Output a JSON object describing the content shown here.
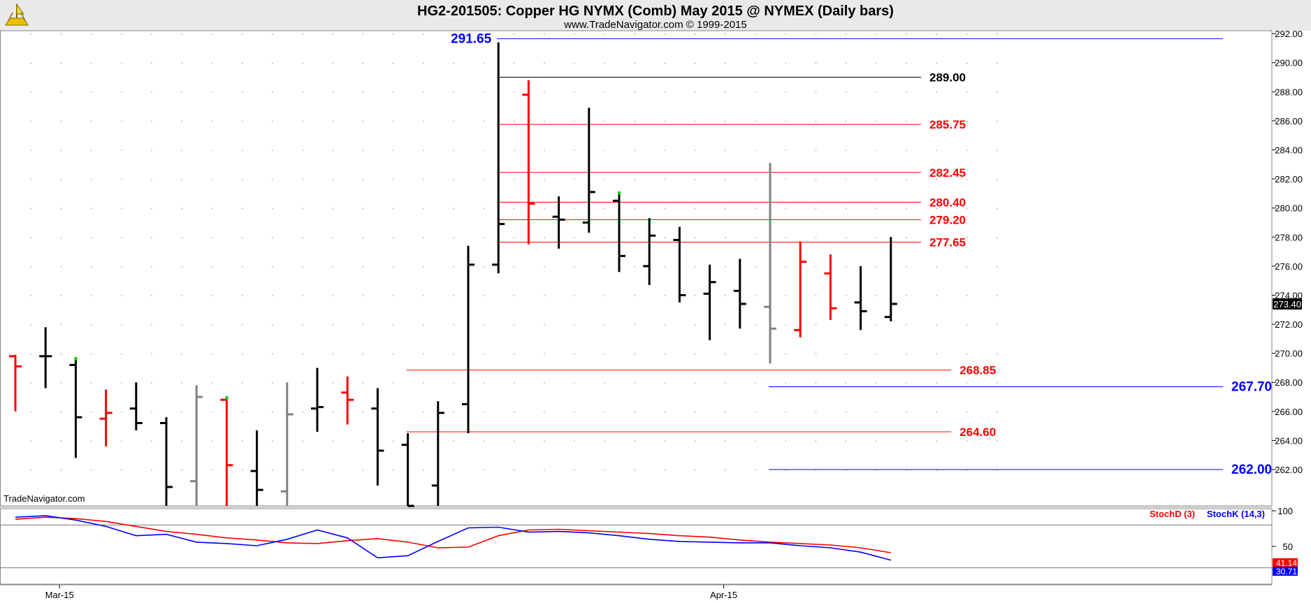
{
  "header": {
    "title": "HG2-201505:  Copper HG NYMX (Comb) May 2015 @ NYMEX  (Daily bars)",
    "subtitle": "www.TradeNavigator.com © 1999-2015",
    "watermark": "TradeNavigator.com",
    "logo_icon": "trade-navigator-logo-icon"
  },
  "colors": {
    "up_bar": "#000000",
    "down_bar": "#ff0000",
    "neutral_bar": "#808080",
    "level_red": "#ff0000",
    "level_blue": "#0000ff",
    "level_black": "#000000",
    "stoch_d": "#ff0000",
    "stoch_k": "#0000ff",
    "green_tick": "#00cc00"
  },
  "chart_data": [
    {
      "type": "ohlc",
      "name": "price",
      "ylim": [
        259.5,
        292.2
      ],
      "yticks": [
        "292.00",
        "290.00",
        "288.00",
        "286.00",
        "284.00",
        "282.00",
        "280.00",
        "278.00",
        "276.00",
        "274.00",
        "272.00",
        "270.00",
        "268.00",
        "266.00",
        "264.00",
        "262.00"
      ],
      "last_price_label": "273.40",
      "x_labels": [
        {
          "i": 1,
          "label": "Mar-15"
        },
        {
          "i": 23,
          "label": "Apr-15"
        }
      ],
      "bars": [
        {
          "i": 0,
          "o": 269.8,
          "h": 269.9,
          "l": 266.0,
          "c": 269.1,
          "color": "red"
        },
        {
          "i": 1,
          "o": 269.8,
          "h": 271.8,
          "l": 267.6,
          "c": 269.8,
          "color": "black"
        },
        {
          "i": 2,
          "o": 269.2,
          "h": 269.6,
          "l": 262.8,
          "c": 265.6,
          "color": "black",
          "green": true
        },
        {
          "i": 3,
          "o": 265.5,
          "h": 267.5,
          "l": 263.6,
          "c": 265.9,
          "color": "red"
        },
        {
          "i": 4,
          "o": 266.2,
          "h": 268.0,
          "l": 264.7,
          "c": 265.2,
          "color": "black"
        },
        {
          "i": 5,
          "o": 265.2,
          "h": 265.6,
          "l": 259.5,
          "c": 260.8,
          "color": "black"
        },
        {
          "i": 6,
          "o": 261.2,
          "h": 267.8,
          "l": 259.5,
          "c": 267.0,
          "color": "gray"
        },
        {
          "i": 7,
          "o": 266.8,
          "h": 266.9,
          "l": 259.5,
          "c": 262.3,
          "color": "red",
          "green": true
        },
        {
          "i": 8,
          "o": 261.9,
          "h": 264.7,
          "l": 259.5,
          "c": 260.6,
          "color": "black"
        },
        {
          "i": 9,
          "o": 260.5,
          "h": 268.0,
          "l": 259.5,
          "c": 265.8,
          "color": "gray"
        },
        {
          "i": 10,
          "o": 266.2,
          "h": 269.0,
          "l": 264.6,
          "c": 266.3,
          "color": "black"
        },
        {
          "i": 11,
          "o": 267.3,
          "h": 268.4,
          "l": 265.1,
          "c": 266.8,
          "color": "red"
        },
        {
          "i": 12,
          "o": 266.2,
          "h": 267.6,
          "l": 260.9,
          "c": 263.3,
          "color": "black"
        },
        {
          "i": 13,
          "o": 263.7,
          "h": 264.5,
          "l": 259.5,
          "c": 259.5,
          "color": "black"
        },
        {
          "i": 14,
          "o": 260.9,
          "h": 266.7,
          "l": 259.5,
          "c": 265.9,
          "color": "black"
        },
        {
          "i": 15,
          "o": 266.5,
          "h": 277.4,
          "l": 264.5,
          "c": 276.1,
          "color": "black"
        },
        {
          "i": 16,
          "o": 276.1,
          "h": 291.4,
          "l": 275.5,
          "c": 278.9,
          "color": "black"
        },
        {
          "i": 17,
          "o": 287.8,
          "h": 288.8,
          "l": 277.5,
          "c": 280.3,
          "color": "red"
        },
        {
          "i": 18,
          "o": 279.4,
          "h": 280.8,
          "l": 277.2,
          "c": 279.2,
          "color": "black"
        },
        {
          "i": 19,
          "o": 279.0,
          "h": 286.9,
          "l": 278.3,
          "c": 281.1,
          "color": "black"
        },
        {
          "i": 20,
          "o": 280.5,
          "h": 281.0,
          "l": 275.6,
          "c": 276.7,
          "color": "black",
          "green": true
        },
        {
          "i": 21,
          "o": 276.0,
          "h": 279.3,
          "l": 274.7,
          "c": 278.1,
          "color": "black"
        },
        {
          "i": 22,
          "o": 277.8,
          "h": 278.7,
          "l": 273.5,
          "c": 274.0,
          "color": "black"
        },
        {
          "i": 23,
          "o": 274.1,
          "h": 276.1,
          "l": 270.9,
          "c": 274.9,
          "color": "black"
        },
        {
          "i": 24,
          "o": 274.3,
          "h": 276.5,
          "l": 271.7,
          "c": 273.4,
          "color": "black"
        },
        {
          "i": 25,
          "o": 273.2,
          "h": 283.1,
          "l": 269.3,
          "c": 271.7,
          "color": "gray"
        },
        {
          "i": 26,
          "o": 271.6,
          "h": 277.7,
          "l": 271.1,
          "c": 276.3,
          "color": "red"
        },
        {
          "i": 27,
          "o": 275.5,
          "h": 276.8,
          "l": 272.3,
          "c": 273.1,
          "color": "red"
        },
        {
          "i": 28,
          "o": 273.5,
          "h": 276.0,
          "l": 271.6,
          "c": 272.9,
          "color": "black"
        },
        {
          "i": 29,
          "o": 272.5,
          "h": 278.0,
          "l": 272.2,
          "c": 273.4,
          "color": "black"
        }
      ],
      "levels": [
        {
          "value": 291.65,
          "label": "291.65",
          "color": "blue",
          "x_from": 16,
          "x_to": 40,
          "label_pos": "left"
        },
        {
          "value": 289.0,
          "label": "289.00",
          "color": "black",
          "x_from": 16,
          "x_to": 30,
          "label_pos": "right"
        },
        {
          "value": 285.75,
          "label": "285.75",
          "color": "red",
          "x_from": 16,
          "x_to": 30,
          "label_pos": "right"
        },
        {
          "value": 282.45,
          "label": "282.45",
          "color": "red",
          "x_from": 16,
          "x_to": 30,
          "label_pos": "right"
        },
        {
          "value": 280.4,
          "label": "280.40",
          "color": "red",
          "x_from": 16,
          "x_to": 30,
          "label_pos": "right"
        },
        {
          "value": 279.2,
          "label": "279.20",
          "color": "red",
          "x_from": 16,
          "x_to": 30,
          "label_pos": "right"
        },
        {
          "value": 277.65,
          "label": "277.65",
          "color": "red",
          "x_from": 16,
          "x_to": 30,
          "label_pos": "right"
        },
        {
          "value": 268.85,
          "label": "268.85",
          "color": "red",
          "x_from": 13,
          "x_to": 31,
          "label_pos": "right"
        },
        {
          "value": 267.7,
          "label": "267.70",
          "color": "blue",
          "x_from": 25,
          "x_to": 40,
          "label_pos": "right"
        },
        {
          "value": 264.6,
          "label": "264.60",
          "color": "red",
          "x_from": 13,
          "x_to": 31,
          "label_pos": "right"
        },
        {
          "value": 262.0,
          "label": "262.00",
          "color": "blue",
          "x_from": 25,
          "x_to": 40,
          "label_pos": "right"
        }
      ]
    },
    {
      "type": "line",
      "name": "stochastic",
      "ylim": [
        0,
        100
      ],
      "yticks": [
        "100",
        "50"
      ],
      "legend": [
        "StochD (3)",
        "StochK (14,3)"
      ],
      "last_labels": [
        "41.14",
        "30.71"
      ],
      "reference_lines": [
        80,
        20
      ],
      "series": [
        {
          "name": "StochD (3)",
          "values": [
            88,
            91,
            89,
            85,
            78,
            71,
            67,
            62,
            59,
            55,
            54,
            58,
            61,
            56,
            48,
            49,
            65,
            73,
            74,
            72,
            70,
            68,
            65,
            63,
            59,
            56,
            54,
            52,
            48,
            41.14
          ]
        },
        {
          "name": "StochK (14,3)",
          "values": [
            91,
            93,
            87,
            78,
            65,
            67,
            56,
            54,
            51,
            60,
            73,
            62,
            34,
            37,
            57,
            76,
            77,
            70,
            71,
            69,
            65,
            60,
            57,
            56,
            55,
            55,
            51,
            48,
            42,
            30.71
          ]
        }
      ]
    }
  ]
}
